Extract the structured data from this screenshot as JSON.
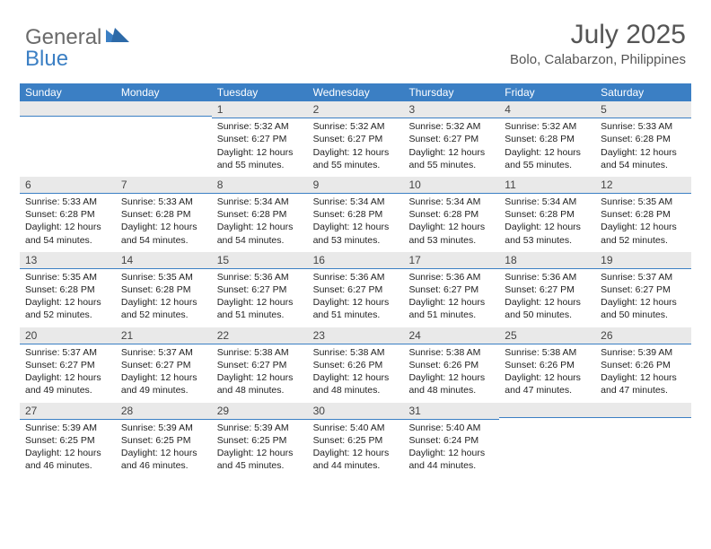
{
  "brand": {
    "part1": "General",
    "part2": "Blue"
  },
  "title": "July 2025",
  "location": "Bolo, Calabarzon, Philippines",
  "colors": {
    "header_bg": "#3b7fc4",
    "strip_bg": "#e9e9e9",
    "strip_border": "#3b7fc4",
    "text": "#333333",
    "logo_gray": "#6a6a6a",
    "logo_blue": "#3b7fc4"
  },
  "weekdays": [
    "Sunday",
    "Monday",
    "Tuesday",
    "Wednesday",
    "Thursday",
    "Friday",
    "Saturday"
  ],
  "weeks": [
    [
      {
        "n": "",
        "sr": "",
        "ss": "",
        "dl": ""
      },
      {
        "n": "",
        "sr": "",
        "ss": "",
        "dl": ""
      },
      {
        "n": "1",
        "sr": "Sunrise: 5:32 AM",
        "ss": "Sunset: 6:27 PM",
        "dl": "Daylight: 12 hours and 55 minutes."
      },
      {
        "n": "2",
        "sr": "Sunrise: 5:32 AM",
        "ss": "Sunset: 6:27 PM",
        "dl": "Daylight: 12 hours and 55 minutes."
      },
      {
        "n": "3",
        "sr": "Sunrise: 5:32 AM",
        "ss": "Sunset: 6:27 PM",
        "dl": "Daylight: 12 hours and 55 minutes."
      },
      {
        "n": "4",
        "sr": "Sunrise: 5:32 AM",
        "ss": "Sunset: 6:28 PM",
        "dl": "Daylight: 12 hours and 55 minutes."
      },
      {
        "n": "5",
        "sr": "Sunrise: 5:33 AM",
        "ss": "Sunset: 6:28 PM",
        "dl": "Daylight: 12 hours and 54 minutes."
      }
    ],
    [
      {
        "n": "6",
        "sr": "Sunrise: 5:33 AM",
        "ss": "Sunset: 6:28 PM",
        "dl": "Daylight: 12 hours and 54 minutes."
      },
      {
        "n": "7",
        "sr": "Sunrise: 5:33 AM",
        "ss": "Sunset: 6:28 PM",
        "dl": "Daylight: 12 hours and 54 minutes."
      },
      {
        "n": "8",
        "sr": "Sunrise: 5:34 AM",
        "ss": "Sunset: 6:28 PM",
        "dl": "Daylight: 12 hours and 54 minutes."
      },
      {
        "n": "9",
        "sr": "Sunrise: 5:34 AM",
        "ss": "Sunset: 6:28 PM",
        "dl": "Daylight: 12 hours and 53 minutes."
      },
      {
        "n": "10",
        "sr": "Sunrise: 5:34 AM",
        "ss": "Sunset: 6:28 PM",
        "dl": "Daylight: 12 hours and 53 minutes."
      },
      {
        "n": "11",
        "sr": "Sunrise: 5:34 AM",
        "ss": "Sunset: 6:28 PM",
        "dl": "Daylight: 12 hours and 53 minutes."
      },
      {
        "n": "12",
        "sr": "Sunrise: 5:35 AM",
        "ss": "Sunset: 6:28 PM",
        "dl": "Daylight: 12 hours and 52 minutes."
      }
    ],
    [
      {
        "n": "13",
        "sr": "Sunrise: 5:35 AM",
        "ss": "Sunset: 6:28 PM",
        "dl": "Daylight: 12 hours and 52 minutes."
      },
      {
        "n": "14",
        "sr": "Sunrise: 5:35 AM",
        "ss": "Sunset: 6:28 PM",
        "dl": "Daylight: 12 hours and 52 minutes."
      },
      {
        "n": "15",
        "sr": "Sunrise: 5:36 AM",
        "ss": "Sunset: 6:27 PM",
        "dl": "Daylight: 12 hours and 51 minutes."
      },
      {
        "n": "16",
        "sr": "Sunrise: 5:36 AM",
        "ss": "Sunset: 6:27 PM",
        "dl": "Daylight: 12 hours and 51 minutes."
      },
      {
        "n": "17",
        "sr": "Sunrise: 5:36 AM",
        "ss": "Sunset: 6:27 PM",
        "dl": "Daylight: 12 hours and 51 minutes."
      },
      {
        "n": "18",
        "sr": "Sunrise: 5:36 AM",
        "ss": "Sunset: 6:27 PM",
        "dl": "Daylight: 12 hours and 50 minutes."
      },
      {
        "n": "19",
        "sr": "Sunrise: 5:37 AM",
        "ss": "Sunset: 6:27 PM",
        "dl": "Daylight: 12 hours and 50 minutes."
      }
    ],
    [
      {
        "n": "20",
        "sr": "Sunrise: 5:37 AM",
        "ss": "Sunset: 6:27 PM",
        "dl": "Daylight: 12 hours and 49 minutes."
      },
      {
        "n": "21",
        "sr": "Sunrise: 5:37 AM",
        "ss": "Sunset: 6:27 PM",
        "dl": "Daylight: 12 hours and 49 minutes."
      },
      {
        "n": "22",
        "sr": "Sunrise: 5:38 AM",
        "ss": "Sunset: 6:27 PM",
        "dl": "Daylight: 12 hours and 48 minutes."
      },
      {
        "n": "23",
        "sr": "Sunrise: 5:38 AM",
        "ss": "Sunset: 6:26 PM",
        "dl": "Daylight: 12 hours and 48 minutes."
      },
      {
        "n": "24",
        "sr": "Sunrise: 5:38 AM",
        "ss": "Sunset: 6:26 PM",
        "dl": "Daylight: 12 hours and 48 minutes."
      },
      {
        "n": "25",
        "sr": "Sunrise: 5:38 AM",
        "ss": "Sunset: 6:26 PM",
        "dl": "Daylight: 12 hours and 47 minutes."
      },
      {
        "n": "26",
        "sr": "Sunrise: 5:39 AM",
        "ss": "Sunset: 6:26 PM",
        "dl": "Daylight: 12 hours and 47 minutes."
      }
    ],
    [
      {
        "n": "27",
        "sr": "Sunrise: 5:39 AM",
        "ss": "Sunset: 6:25 PM",
        "dl": "Daylight: 12 hours and 46 minutes."
      },
      {
        "n": "28",
        "sr": "Sunrise: 5:39 AM",
        "ss": "Sunset: 6:25 PM",
        "dl": "Daylight: 12 hours and 46 minutes."
      },
      {
        "n": "29",
        "sr": "Sunrise: 5:39 AM",
        "ss": "Sunset: 6:25 PM",
        "dl": "Daylight: 12 hours and 45 minutes."
      },
      {
        "n": "30",
        "sr": "Sunrise: 5:40 AM",
        "ss": "Sunset: 6:25 PM",
        "dl": "Daylight: 12 hours and 44 minutes."
      },
      {
        "n": "31",
        "sr": "Sunrise: 5:40 AM",
        "ss": "Sunset: 6:24 PM",
        "dl": "Daylight: 12 hours and 44 minutes."
      },
      {
        "n": "",
        "sr": "",
        "ss": "",
        "dl": ""
      },
      {
        "n": "",
        "sr": "",
        "ss": "",
        "dl": ""
      }
    ]
  ]
}
